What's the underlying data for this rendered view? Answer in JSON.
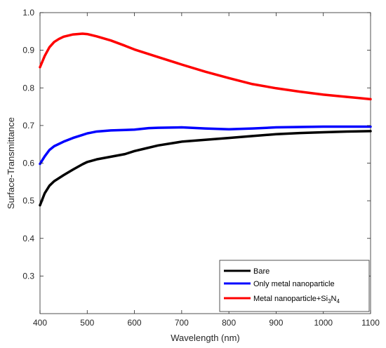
{
  "chart_data": {
    "type": "line",
    "title": "",
    "xlabel": "Wavelength (nm)",
    "ylabel": "Surface-Transmittance",
    "xlim": [
      400,
      1100
    ],
    "ylim": [
      0.2,
      1.0
    ],
    "xticks": [
      400,
      500,
      600,
      700,
      800,
      900,
      1000,
      1100
    ],
    "yticks": [
      0.3,
      0.4,
      0.5,
      0.6,
      0.7,
      0.8,
      0.9,
      1.0
    ],
    "xtick_labels": [
      "400",
      "500",
      "600",
      "700",
      "800",
      "900",
      "1000",
      "1100"
    ],
    "ytick_labels": [
      "0.3",
      "0.4",
      "0.5",
      "0.6",
      "0.7",
      "0.8",
      "0.9",
      "1.0"
    ],
    "grid": false,
    "legend_position": "bottom-right",
    "series": [
      {
        "name": "Bare",
        "color": "#000000",
        "x": [
          400,
          410,
          420,
          430,
          450,
          470,
          490,
          500,
          520,
          550,
          580,
          600,
          620,
          650,
          700,
          750,
          800,
          850,
          900,
          950,
          1000,
          1050,
          1100
        ],
        "y": [
          0.488,
          0.52,
          0.54,
          0.552,
          0.568,
          0.583,
          0.597,
          0.603,
          0.61,
          0.617,
          0.624,
          0.632,
          0.638,
          0.647,
          0.657,
          0.662,
          0.667,
          0.672,
          0.677,
          0.68,
          0.682,
          0.684,
          0.685
        ]
      },
      {
        "name": "Only metal nanoparticle",
        "color": "#0000ff",
        "x": [
          400,
          410,
          420,
          430,
          450,
          470,
          490,
          500,
          520,
          550,
          580,
          600,
          630,
          650,
          700,
          750,
          800,
          850,
          900,
          950,
          1000,
          1050,
          1100
        ],
        "y": [
          0.598,
          0.618,
          0.635,
          0.645,
          0.657,
          0.667,
          0.675,
          0.679,
          0.684,
          0.687,
          0.688,
          0.689,
          0.693,
          0.694,
          0.695,
          0.692,
          0.69,
          0.692,
          0.695,
          0.696,
          0.697,
          0.697,
          0.697
        ]
      },
      {
        "name": "Metal nanoparticle+Si₃N₄",
        "color": "#ff0000",
        "x": [
          400,
          410,
          420,
          430,
          440,
          450,
          470,
          490,
          500,
          520,
          550,
          580,
          600,
          650,
          700,
          750,
          800,
          850,
          900,
          950,
          1000,
          1050,
          1100
        ],
        "y": [
          0.855,
          0.885,
          0.908,
          0.922,
          0.93,
          0.936,
          0.942,
          0.944,
          0.943,
          0.937,
          0.926,
          0.912,
          0.902,
          0.882,
          0.862,
          0.843,
          0.826,
          0.81,
          0.799,
          0.79,
          0.782,
          0.776,
          0.77
        ]
      }
    ]
  },
  "legend": {
    "items": [
      {
        "label": "Bare",
        "color": "#000000"
      },
      {
        "label": "Only metal nanoparticle",
        "color": "#0000ff"
      },
      {
        "label_main": "Metal nanoparticle+Si",
        "sub1": "3",
        "mid": "N",
        "sub2": "4",
        "color": "#ff0000"
      }
    ]
  }
}
